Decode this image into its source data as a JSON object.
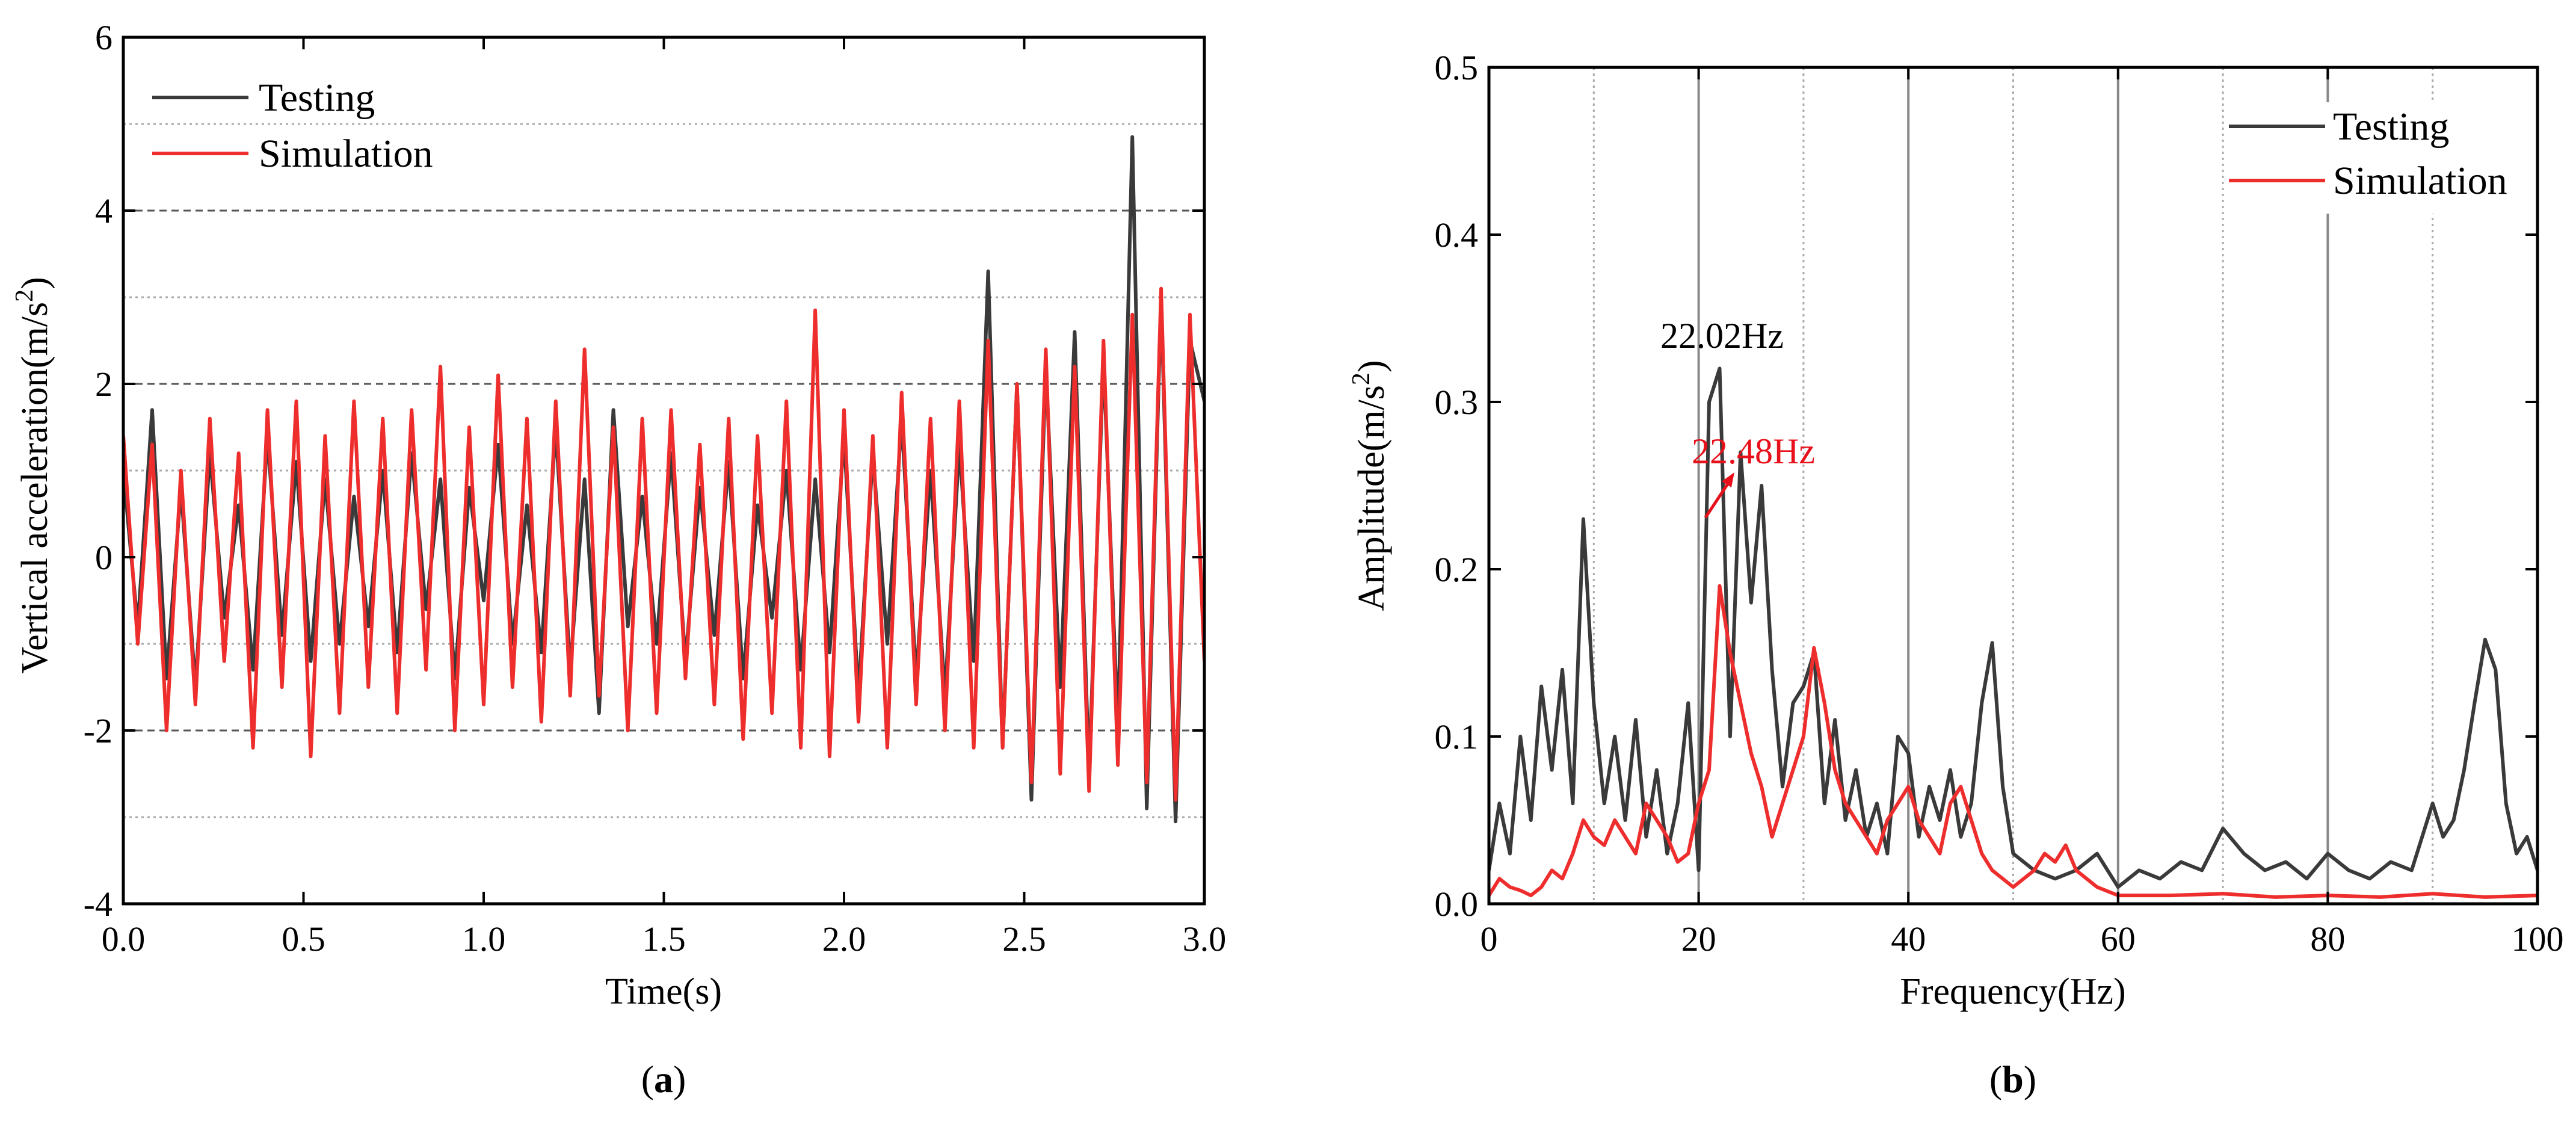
{
  "figure": {
    "captions": [
      {
        "prefix": "(",
        "bold": "a",
        "suffix": ")"
      },
      {
        "prefix": "(",
        "bold": "b",
        "suffix": ")"
      }
    ]
  },
  "colors": {
    "testing": "#3a3a3a",
    "simulation": "#ee2d2d",
    "annotation_testing": "#000000",
    "annotation_simulation": "#e8101a"
  },
  "chart_data": [
    {
      "id": "a",
      "type": "line",
      "title": "",
      "xlabel": "Time(s)",
      "ylabel_prefix": "Vertical acceleration(m/s",
      "ylabel_sup": "2",
      "ylabel_suffix": ")",
      "xlim": [
        0.0,
        3.0
      ],
      "ylim": [
        -4,
        6
      ],
      "xticks": [
        0.0,
        0.5,
        1.0,
        1.5,
        2.0,
        2.5,
        3.0
      ],
      "xtick_labels": [
        "0.0",
        "0.5",
        "1.0",
        "1.5",
        "2.0",
        "2.5",
        "3.0"
      ],
      "yticks": [
        -4,
        -2,
        0,
        2,
        4,
        6
      ],
      "ytick_labels": [
        "-4",
        "-2",
        "0",
        "2",
        "4",
        "6"
      ],
      "grid_dashed_y": [
        -2,
        2,
        4
      ],
      "grid_dotted_y": [
        -3,
        -1,
        1,
        3,
        5
      ],
      "legend": {
        "position": "top-left",
        "entries": [
          "Testing",
          "Simulation"
        ]
      },
      "series": [
        {
          "name": "Testing",
          "x": [
            0.0,
            0.04,
            0.08,
            0.12,
            0.16,
            0.2,
            0.24,
            0.28,
            0.32,
            0.36,
            0.4,
            0.44,
            0.48,
            0.52,
            0.56,
            0.6,
            0.64,
            0.68,
            0.72,
            0.76,
            0.8,
            0.84,
            0.88,
            0.92,
            0.96,
            1.0,
            1.04,
            1.08,
            1.12,
            1.16,
            1.2,
            1.24,
            1.28,
            1.32,
            1.36,
            1.4,
            1.44,
            1.48,
            1.52,
            1.56,
            1.6,
            1.64,
            1.68,
            1.72,
            1.76,
            1.8,
            1.84,
            1.88,
            1.92,
            1.96,
            2.0,
            2.04,
            2.08,
            2.12,
            2.16,
            2.2,
            2.24,
            2.28,
            2.32,
            2.36,
            2.4,
            2.44,
            2.48,
            2.52,
            2.56,
            2.6,
            2.64,
            2.68,
            2.72,
            2.76,
            2.8,
            2.84,
            2.88,
            2.92,
            2.96,
            3.0
          ],
          "values": [
            1.0,
            -0.8,
            1.7,
            -1.4,
            0.8,
            -1.5,
            1.2,
            -0.7,
            0.6,
            -1.3,
            1.4,
            -0.9,
            1.1,
            -1.2,
            0.9,
            -1.0,
            0.7,
            -0.8,
            1.0,
            -1.1,
            1.2,
            -0.6,
            0.9,
            -1.4,
            0.8,
            -0.5,
            1.3,
            -1.0,
            0.6,
            -1.1,
            1.5,
            -1.3,
            0.9,
            -1.8,
            1.7,
            -0.8,
            0.7,
            -1.0,
            1.2,
            -1.2,
            0.8,
            -0.9,
            1.1,
            -1.4,
            0.6,
            -0.7,
            1.0,
            -1.3,
            0.9,
            -1.1,
            1.4,
            -1.6,
            1.2,
            -1.0,
            1.6,
            -1.4,
            1.0,
            -1.6,
            1.3,
            -1.2,
            3.3,
            -2.2,
            2.0,
            -2.8,
            2.2,
            -1.5,
            2.6,
            -2.5,
            2.3,
            -2.0,
            4.85,
            -2.9,
            3.0,
            -3.05,
            2.5,
            1.8
          ]
        },
        {
          "name": "Simulation",
          "x": [
            0.0,
            0.04,
            0.08,
            0.12,
            0.16,
            0.2,
            0.24,
            0.28,
            0.32,
            0.36,
            0.4,
            0.44,
            0.48,
            0.52,
            0.56,
            0.6,
            0.64,
            0.68,
            0.72,
            0.76,
            0.8,
            0.84,
            0.88,
            0.92,
            0.96,
            1.0,
            1.04,
            1.08,
            1.12,
            1.16,
            1.2,
            1.24,
            1.28,
            1.32,
            1.36,
            1.4,
            1.44,
            1.48,
            1.52,
            1.56,
            1.6,
            1.64,
            1.68,
            1.72,
            1.76,
            1.8,
            1.84,
            1.88,
            1.92,
            1.96,
            2.0,
            2.04,
            2.08,
            2.12,
            2.16,
            2.2,
            2.24,
            2.28,
            2.32,
            2.36,
            2.4,
            2.44,
            2.48,
            2.52,
            2.56,
            2.6,
            2.64,
            2.68,
            2.72,
            2.76,
            2.8,
            2.84,
            2.88,
            2.92,
            2.96,
            3.0
          ],
          "values": [
            1.4,
            -1.0,
            1.3,
            -2.0,
            1.0,
            -1.7,
            1.6,
            -1.2,
            1.2,
            -2.2,
            1.7,
            -1.5,
            1.8,
            -2.3,
            1.4,
            -1.8,
            1.8,
            -1.5,
            1.6,
            -1.8,
            1.7,
            -1.3,
            2.2,
            -2.0,
            1.5,
            -1.7,
            2.1,
            -1.5,
            1.6,
            -1.9,
            1.8,
            -1.6,
            2.4,
            -1.6,
            1.5,
            -2.0,
            1.6,
            -1.8,
            1.7,
            -1.4,
            1.3,
            -1.7,
            1.6,
            -2.1,
            1.4,
            -1.8,
            1.8,
            -2.2,
            2.85,
            -2.3,
            1.7,
            -1.9,
            1.4,
            -2.2,
            1.9,
            -1.7,
            1.6,
            -2.0,
            1.8,
            -2.2,
            2.5,
            -2.2,
            2.0,
            -2.6,
            2.4,
            -2.5,
            2.2,
            -2.7,
            2.5,
            -2.4,
            2.8,
            -2.6,
            3.1,
            -2.8,
            2.8,
            -1.2
          ]
        }
      ]
    },
    {
      "id": "b",
      "type": "line",
      "title": "",
      "xlabel": "Frequency(Hz)",
      "ylabel_prefix": "Amplitude(m/s",
      "ylabel_sup": "2",
      "ylabel_suffix": ")",
      "xlim": [
        0,
        100
      ],
      "ylim": [
        0.0,
        0.5
      ],
      "xticks": [
        0,
        20,
        40,
        60,
        80,
        100
      ],
      "xtick_labels": [
        "0",
        "20",
        "40",
        "60",
        "80",
        "100"
      ],
      "yticks": [
        0.0,
        0.1,
        0.2,
        0.3,
        0.4,
        0.5
      ],
      "ytick_labels": [
        "0.0",
        "0.1",
        "0.2",
        "0.3",
        "0.4",
        "0.5"
      ],
      "grid_solid_x": [
        20,
        40,
        60,
        80
      ],
      "grid_dotted_x": [
        10,
        30,
        50,
        70,
        90
      ],
      "legend": {
        "position": "top-right",
        "entries": [
          "Testing",
          "Simulation"
        ]
      },
      "annotations": [
        {
          "text": "22.02Hz",
          "x": 22.02,
          "y": 0.32,
          "series": "Testing"
        },
        {
          "text": "22.48Hz",
          "x": 22.48,
          "y": 0.19,
          "series": "Simulation"
        }
      ],
      "series": [
        {
          "name": "Testing",
          "x": [
            0,
            1,
            2,
            3,
            4,
            5,
            6,
            7,
            8,
            9,
            10,
            11,
            12,
            13,
            14,
            15,
            16,
            17,
            18,
            19,
            20,
            21,
            22,
            23,
            24,
            25,
            26,
            27,
            28,
            29,
            30,
            31,
            32,
            33,
            34,
            35,
            36,
            37,
            38,
            39,
            40,
            41,
            42,
            43,
            44,
            45,
            46,
            47,
            48,
            49,
            50,
            52,
            54,
            56,
            58,
            60,
            62,
            64,
            66,
            68,
            70,
            72,
            74,
            76,
            78,
            80,
            82,
            84,
            86,
            88,
            90,
            91,
            92,
            93,
            94,
            95,
            96,
            97,
            98,
            99,
            100
          ],
          "values": [
            0.02,
            0.06,
            0.03,
            0.1,
            0.05,
            0.13,
            0.08,
            0.14,
            0.06,
            0.23,
            0.12,
            0.06,
            0.1,
            0.05,
            0.11,
            0.04,
            0.08,
            0.03,
            0.06,
            0.12,
            0.02,
            0.3,
            0.32,
            0.1,
            0.27,
            0.18,
            0.25,
            0.14,
            0.07,
            0.12,
            0.13,
            0.15,
            0.06,
            0.11,
            0.05,
            0.08,
            0.04,
            0.06,
            0.03,
            0.1,
            0.09,
            0.04,
            0.07,
            0.05,
            0.08,
            0.04,
            0.06,
            0.12,
            0.156,
            0.07,
            0.03,
            0.02,
            0.015,
            0.02,
            0.03,
            0.01,
            0.02,
            0.015,
            0.025,
            0.02,
            0.045,
            0.03,
            0.02,
            0.025,
            0.015,
            0.03,
            0.02,
            0.015,
            0.025,
            0.02,
            0.06,
            0.04,
            0.05,
            0.08,
            0.12,
            0.158,
            0.14,
            0.06,
            0.03,
            0.04,
            0.02
          ]
        },
        {
          "name": "Simulation",
          "x": [
            0,
            1,
            2,
            3,
            4,
            5,
            6,
            7,
            8,
            9,
            10,
            11,
            12,
            13,
            14,
            15,
            16,
            17,
            18,
            19,
            20,
            21,
            22,
            23,
            24,
            25,
            26,
            27,
            28,
            29,
            30,
            31,
            32,
            33,
            34,
            35,
            36,
            37,
            38,
            39,
            40,
            41,
            42,
            43,
            44,
            45,
            46,
            47,
            48,
            49,
            50,
            51,
            52,
            53,
            54,
            55,
            56,
            58,
            60,
            65,
            70,
            75,
            80,
            85,
            90,
            95,
            100
          ],
          "values": [
            0.005,
            0.015,
            0.01,
            0.008,
            0.005,
            0.01,
            0.02,
            0.015,
            0.03,
            0.05,
            0.04,
            0.035,
            0.05,
            0.04,
            0.03,
            0.06,
            0.05,
            0.04,
            0.025,
            0.03,
            0.06,
            0.08,
            0.19,
            0.15,
            0.12,
            0.09,
            0.07,
            0.04,
            0.06,
            0.08,
            0.1,
            0.153,
            0.12,
            0.08,
            0.06,
            0.05,
            0.04,
            0.03,
            0.05,
            0.06,
            0.07,
            0.05,
            0.04,
            0.03,
            0.06,
            0.07,
            0.05,
            0.03,
            0.02,
            0.015,
            0.01,
            0.015,
            0.02,
            0.03,
            0.025,
            0.035,
            0.02,
            0.01,
            0.005,
            0.005,
            0.006,
            0.004,
            0.005,
            0.004,
            0.006,
            0.004,
            0.005
          ]
        }
      ]
    }
  ]
}
